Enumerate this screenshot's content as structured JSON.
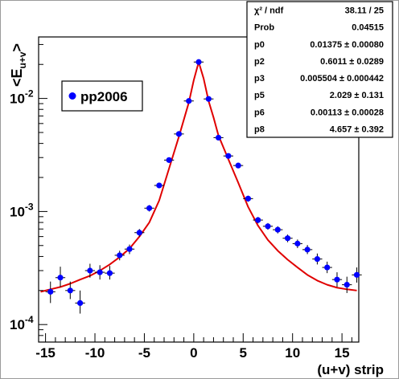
{
  "chart_data": {
    "type": "scatter",
    "x_label": "(u+v) strip",
    "y_label_main": "<E",
    "y_label_sub": "u+v",
    "y_label_close": ">",
    "x_range": [
      -15.7,
      16.7
    ],
    "y_range": [
      7e-05,
      0.035
    ],
    "y_scale": "log",
    "x_ticks": [
      -15,
      -10,
      -5,
      0,
      5,
      10,
      15
    ],
    "x_tick_labels": [
      "-15",
      "-10",
      "-5",
      "0",
      "5",
      "10",
      "15"
    ],
    "y_ticks": [
      {
        "base": "10",
        "exp": "-4",
        "value": 0.0001
      },
      {
        "base": "10",
        "exp": "-3",
        "value": 0.001
      },
      {
        "base": "10",
        "exp": "-2",
        "value": 0.01
      }
    ],
    "grid": false,
    "legend": {
      "position": "upper-left",
      "entries": [
        {
          "label": "pp2006",
          "color": "#0000ff"
        }
      ]
    },
    "series": [
      {
        "name": "pp2006",
        "color": "#0000ff",
        "points": [
          {
            "x": -14.5,
            "y": 0.000195,
            "lo": 0.000155,
            "hi": 0.00024
          },
          {
            "x": -13.5,
            "y": 0.00026,
            "lo": 0.000215,
            "hi": 0.000325
          },
          {
            "x": -12.5,
            "y": 0.0002,
            "lo": 0.000168,
            "hi": 0.00024
          },
          {
            "x": -11.5,
            "y": 0.000155,
            "lo": 0.000125,
            "hi": 0.0002
          },
          {
            "x": -10.5,
            "y": 0.0003,
            "lo": 0.00026,
            "hi": 0.000345
          },
          {
            "x": -9.5,
            "y": 0.00029,
            "lo": 0.00025,
            "hi": 0.000335
          },
          {
            "x": -8.5,
            "y": 0.000285,
            "lo": 0.00025,
            "hi": 0.00033
          },
          {
            "x": -7.5,
            "y": 0.00041,
            "lo": 0.00037,
            "hi": 0.00045
          },
          {
            "x": -6.5,
            "y": 0.000465,
            "lo": 0.00042,
            "hi": 0.00051
          },
          {
            "x": -5.5,
            "y": 0.00065,
            "lo": 0.0006,
            "hi": 0.0007
          },
          {
            "x": -4.5,
            "y": 0.00107,
            "lo": 0.001,
            "hi": 0.00114
          },
          {
            "x": -3.5,
            "y": 0.0017,
            "lo": 0.00161,
            "hi": 0.00179
          },
          {
            "x": -2.5,
            "y": 0.00285,
            "lo": 0.00272,
            "hi": 0.00298
          },
          {
            "x": -1.5,
            "y": 0.00485,
            "lo": 0.00468,
            "hi": 0.00502
          },
          {
            "x": -0.5,
            "y": 0.0095,
            "lo": 0.00925,
            "hi": 0.00975
          },
          {
            "x": 0.5,
            "y": 0.021,
            "lo": 0.0206,
            "hi": 0.0214
          },
          {
            "x": 1.5,
            "y": 0.0099,
            "lo": 0.00965,
            "hi": 0.01015
          },
          {
            "x": 2.5,
            "y": 0.0045,
            "lo": 0.00434,
            "hi": 0.00466
          },
          {
            "x": 3.5,
            "y": 0.0031,
            "lo": 0.00297,
            "hi": 0.00323
          },
          {
            "x": 4.5,
            "y": 0.00255,
            "lo": 0.00243,
            "hi": 0.00267
          },
          {
            "x": 5.5,
            "y": 0.0013,
            "lo": 0.00122,
            "hi": 0.00138
          },
          {
            "x": 6.5,
            "y": 0.00084,
            "lo": 0.000785,
            "hi": 0.000895
          },
          {
            "x": 7.5,
            "y": 0.00074,
            "lo": 0.00069,
            "hi": 0.00079
          },
          {
            "x": 8.5,
            "y": 0.00069,
            "lo": 0.00064,
            "hi": 0.00074
          },
          {
            "x": 9.5,
            "y": 0.00058,
            "lo": 0.000535,
            "hi": 0.000625
          },
          {
            "x": 10.5,
            "y": 0.00052,
            "lo": 0.000475,
            "hi": 0.000565
          },
          {
            "x": 11.5,
            "y": 0.00046,
            "lo": 0.00042,
            "hi": 0.000505
          },
          {
            "x": 12.5,
            "y": 0.00038,
            "lo": 0.00034,
            "hi": 0.000425
          },
          {
            "x": 13.5,
            "y": 0.00032,
            "lo": 0.000285,
            "hi": 0.00036
          },
          {
            "x": 14.5,
            "y": 0.00025,
            "lo": 0.000215,
            "hi": 0.00029
          },
          {
            "x": 15.5,
            "y": 0.000225,
            "lo": 0.00019,
            "hi": 0.000265
          },
          {
            "x": 16.5,
            "y": 0.000275,
            "lo": 0.000235,
            "hi": 0.00032
          }
        ]
      }
    ],
    "fit_curve": {
      "color": "#e00000",
      "points": [
        {
          "x": -15.5,
          "y": 0.000195
        },
        {
          "x": -14.5,
          "y": 0.000205
        },
        {
          "x": -13.5,
          "y": 0.000215
        },
        {
          "x": -12.5,
          "y": 0.00023
        },
        {
          "x": -11.5,
          "y": 0.00025
        },
        {
          "x": -10.5,
          "y": 0.00027
        },
        {
          "x": -9.5,
          "y": 0.0003
        },
        {
          "x": -8.5,
          "y": 0.00034
        },
        {
          "x": -7.5,
          "y": 0.000395
        },
        {
          "x": -6.5,
          "y": 0.00047
        },
        {
          "x": -5.5,
          "y": 0.0006
        },
        {
          "x": -4.5,
          "y": 0.0008
        },
        {
          "x": -3.5,
          "y": 0.00125
        },
        {
          "x": -2.5,
          "y": 0.0024
        },
        {
          "x": -1.5,
          "y": 0.0046
        },
        {
          "x": -0.5,
          "y": 0.0092
        },
        {
          "x": 0.0,
          "y": 0.0145
        },
        {
          "x": 0.5,
          "y": 0.021
        },
        {
          "x": 1.0,
          "y": 0.015
        },
        {
          "x": 1.5,
          "y": 0.0095
        },
        {
          "x": 2.0,
          "y": 0.0068
        },
        {
          "x": 2.5,
          "y": 0.0047
        },
        {
          "x": 3.5,
          "y": 0.0029
        },
        {
          "x": 4.5,
          "y": 0.0018
        },
        {
          "x": 5.5,
          "y": 0.0011
        },
        {
          "x": 6.5,
          "y": 0.00075
        },
        {
          "x": 7.5,
          "y": 0.00056
        },
        {
          "x": 8.5,
          "y": 0.00045
        },
        {
          "x": 9.5,
          "y": 0.000375
        },
        {
          "x": 10.5,
          "y": 0.00032
        },
        {
          "x": 11.5,
          "y": 0.000275
        },
        {
          "x": 12.5,
          "y": 0.000245
        },
        {
          "x": 13.5,
          "y": 0.000225
        },
        {
          "x": 14.5,
          "y": 0.000212
        },
        {
          "x": 15.5,
          "y": 0.000205
        },
        {
          "x": 16.5,
          "y": 0.0002
        }
      ]
    },
    "stats_box": {
      "rows": [
        {
          "label": "χ² / ndf",
          "value": "38.11 / 25"
        },
        {
          "label": "Prob",
          "value": "0.04515"
        },
        {
          "label": "p0",
          "value": "0.01375 ± 0.00080"
        },
        {
          "label": "p2",
          "value": "0.6011 ± 0.0289"
        },
        {
          "label": "p3",
          "value": "0.005504 ± 0.000442"
        },
        {
          "label": "p5",
          "value": "2.029 ± 0.131"
        },
        {
          "label": "p6",
          "value": "0.00113 ± 0.00028"
        },
        {
          "label": "p8",
          "value": "4.657 ± 0.392"
        }
      ]
    }
  }
}
